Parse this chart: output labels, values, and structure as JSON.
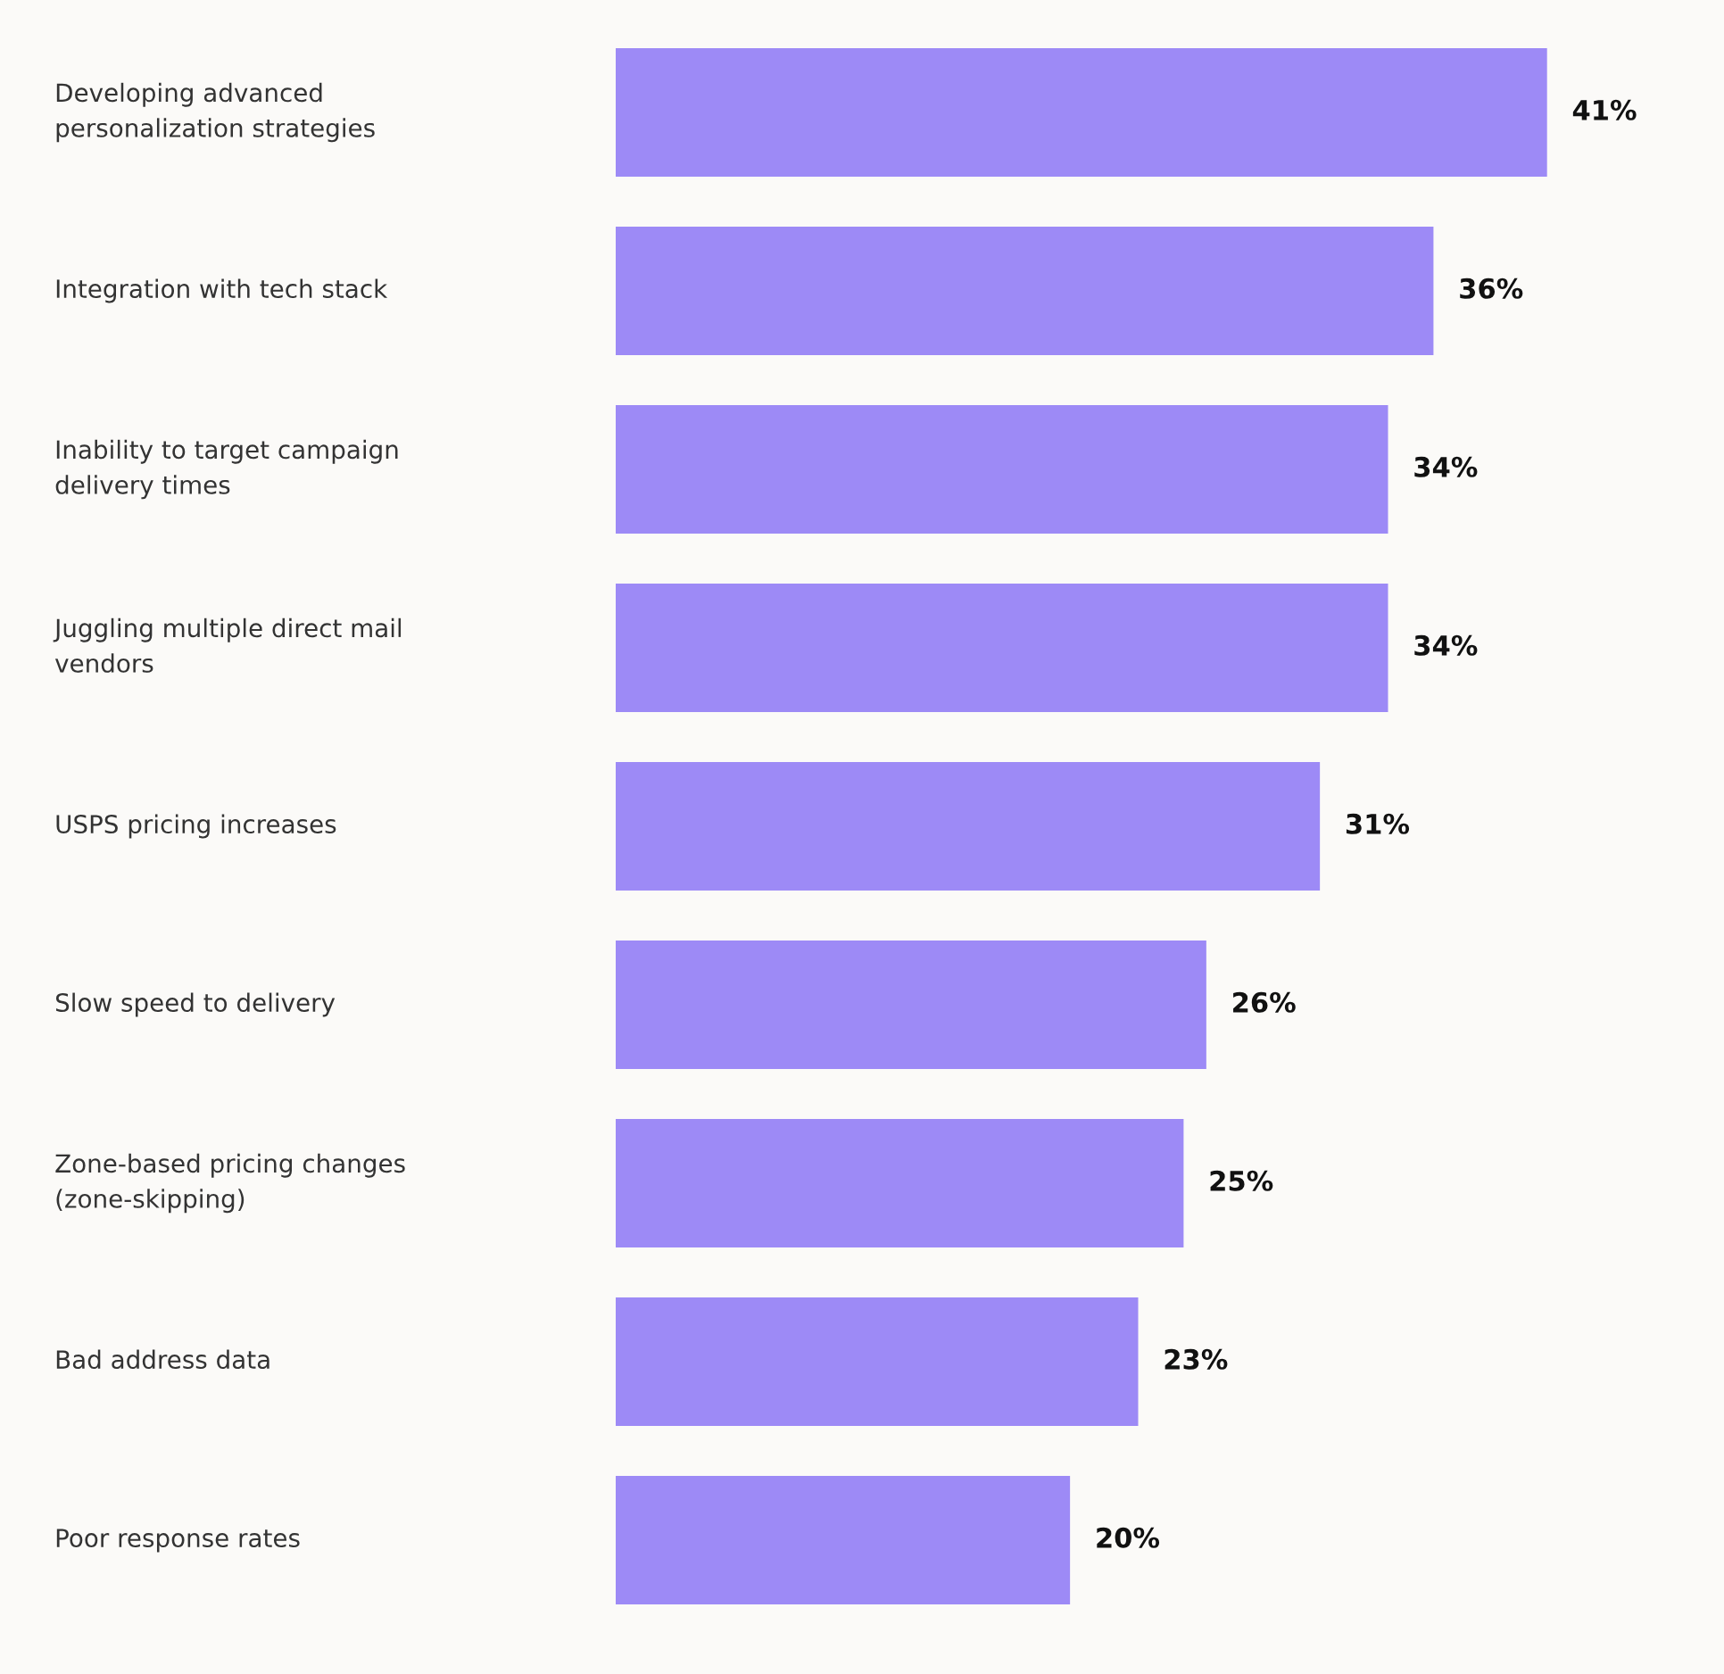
{
  "chart_data": {
    "type": "bar",
    "orientation": "horizontal",
    "data_labels": true,
    "value_labels": [
      "41%",
      "36%",
      "34%",
      "34%",
      "31%",
      "26%",
      "25%",
      "23%",
      "20%"
    ],
    "categories": [
      "Developing advanced\npersonalization strategies",
      "Integration with tech stack",
      "Inability to target campaign\ndelivery times",
      "Juggling multiple direct mail\nvendors",
      "USPS pricing increases",
      "Slow speed to delivery",
      "Zone-based pricing changes\n(zone-skipping)",
      "Bad address data",
      "Poor response rates"
    ],
    "values": [
      41,
      36,
      34,
      34,
      31,
      26,
      25,
      23,
      20
    ],
    "color": "#9d8af6"
  }
}
